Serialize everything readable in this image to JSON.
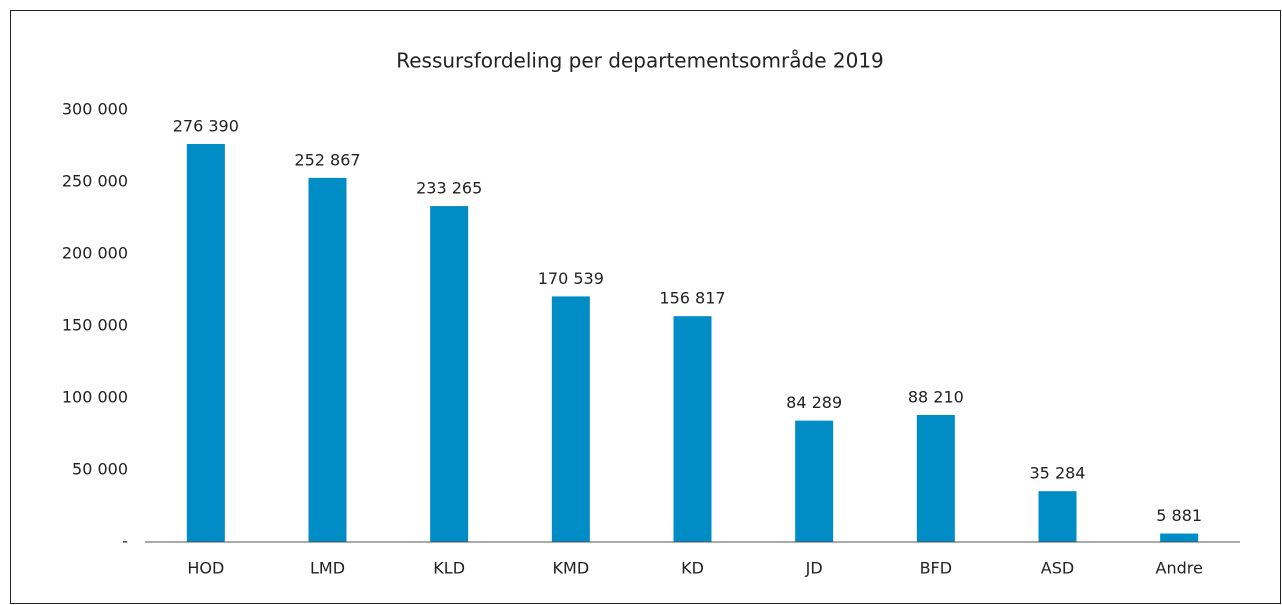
{
  "chart_data": {
    "type": "bar",
    "title": "Ressursfordeling per departementsområde 2019",
    "categories": [
      "HOD",
      "LMD",
      "KLD",
      "KMD",
      "KD",
      "JD",
      "BFD",
      "ASD",
      "Andre"
    ],
    "values": [
      276390,
      252867,
      233265,
      170539,
      156817,
      84289,
      88210,
      35284,
      5881
    ],
    "value_labels": [
      "276 390",
      "252 867",
      "233 265",
      "170 539",
      "156 817",
      "84 289",
      "88 210",
      "35 284",
      "5 881"
    ],
    "color": "#008cc4",
    "ylim": [
      0,
      300000
    ],
    "yticks": [
      {
        "value": 0,
        "label": "-"
      },
      {
        "value": 50000,
        "label": "50 000"
      },
      {
        "value": 100000,
        "label": "100 000"
      },
      {
        "value": 150000,
        "label": "150 000"
      },
      {
        "value": 200000,
        "label": "200 000"
      },
      {
        "value": 250000,
        "label": "250 000"
      },
      {
        "value": 300000,
        "label": "300 000"
      }
    ],
    "grid": false
  }
}
